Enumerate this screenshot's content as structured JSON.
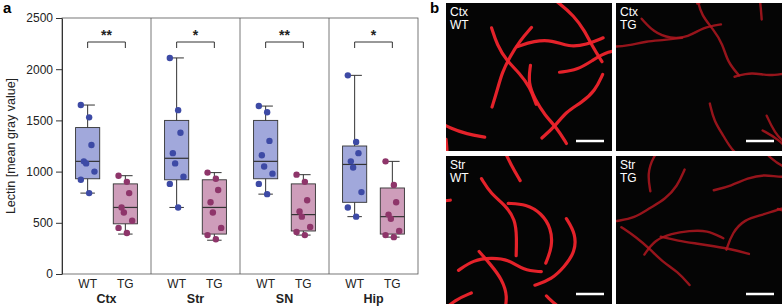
{
  "chart_data": {
    "type": "box",
    "panel_label": "a",
    "y_label": "Lectin [mean gray value]",
    "categories": [
      "Ctx",
      "Str",
      "SN",
      "Hip"
    ],
    "ylim": [
      0,
      2500
    ],
    "yticks": [
      0,
      500,
      1000,
      1500,
      2000,
      2500
    ],
    "grid": false,
    "significance": [
      "**",
      "*",
      "**",
      "*"
    ],
    "series": [
      {
        "name": "WT",
        "color": "#4452b8",
        "boxes": [
          {
            "min": 790,
            "q1": 930,
            "median": 1100,
            "q3": 1430,
            "max": 1650,
            "points": [
              1650,
              1530,
              1260,
              1100,
              1080,
              1000,
              920,
              790
            ]
          },
          {
            "min": 650,
            "q1": 920,
            "median": 1130,
            "q3": 1500,
            "max": 2110,
            "points": [
              2110,
              1600,
              1380,
              1180,
              1080,
              950,
              880,
              650
            ]
          },
          {
            "min": 780,
            "q1": 930,
            "median": 1100,
            "q3": 1500,
            "max": 1640,
            "points": [
              1640,
              1580,
              1300,
              1160,
              1050,
              980,
              880,
              780
            ]
          },
          {
            "min": 560,
            "q1": 700,
            "median": 1070,
            "q3": 1250,
            "max": 1940,
            "points": [
              1940,
              1290,
              1180,
              1100,
              1040,
              800,
              650,
              560
            ]
          }
        ]
      },
      {
        "name": "TG",
        "color": "#9e3b76",
        "boxes": [
          {
            "min": 390,
            "q1": 490,
            "median": 650,
            "q3": 880,
            "max": 960,
            "points": [
              960,
              900,
              790,
              650,
              600,
              520,
              450,
              400
            ]
          },
          {
            "min": 330,
            "q1": 390,
            "median": 650,
            "q3": 920,
            "max": 990,
            "points": [
              990,
              930,
              820,
              700,
              600,
              450,
              380,
              340
            ]
          },
          {
            "min": 380,
            "q1": 420,
            "median": 580,
            "q3": 880,
            "max": 970,
            "points": [
              970,
              900,
              720,
              610,
              560,
              460,
              410,
              380
            ]
          },
          {
            "min": 360,
            "q1": 390,
            "median": 560,
            "q3": 840,
            "max": 1100,
            "points": [
              1100,
              870,
              700,
              580,
              540,
              420,
              380,
              360
            ]
          }
        ]
      }
    ]
  },
  "images": {
    "panel_label": "b",
    "panels": [
      {
        "region": "Ctx",
        "genotype": "WT"
      },
      {
        "region": "Ctx",
        "genotype": "TG"
      },
      {
        "region": "Str",
        "genotype": "WT"
      },
      {
        "region": "Str",
        "genotype": "TG"
      }
    ]
  }
}
